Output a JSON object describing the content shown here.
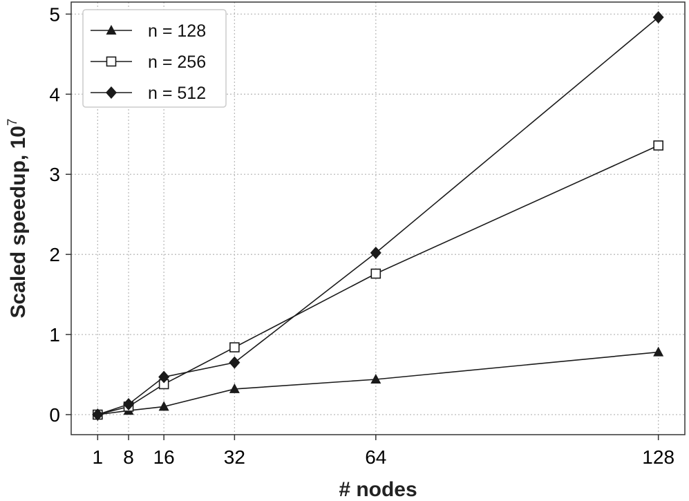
{
  "chart_data": {
    "type": "line",
    "xlabel": "# nodes",
    "ylabel": "Scaled speedup, 10",
    "ylabel_superscript": "7",
    "x_ticks": [
      1,
      8,
      16,
      32,
      64,
      128
    ],
    "x_tick_labels": [
      "1",
      "8",
      "16",
      "32",
      "64",
      "128"
    ],
    "y_ticks": [
      0,
      1,
      2,
      3,
      4,
      5
    ],
    "y_tick_labels": [
      "0",
      "1",
      "2",
      "3",
      "4",
      "5"
    ],
    "xlim": [
      -5,
      134
    ],
    "ylim": [
      -0.25,
      5.15
    ],
    "grid": true,
    "legend_position": "top-left",
    "x": [
      1,
      8,
      16,
      32,
      64,
      128
    ],
    "series": [
      {
        "name": "n = 128",
        "marker": "triangle",
        "values": [
          0.0,
          0.05,
          0.1,
          0.32,
          0.44,
          0.78
        ]
      },
      {
        "name": "n = 256",
        "marker": "square-open",
        "values": [
          0.0,
          0.1,
          0.38,
          0.84,
          1.76,
          3.36
        ]
      },
      {
        "name": "n = 512",
        "marker": "diamond",
        "values": [
          0.0,
          0.13,
          0.47,
          0.65,
          2.02,
          4.96
        ]
      }
    ],
    "colors": {
      "line": "#1a1a1a",
      "grid": "#bbbbbb",
      "axis": "#333333"
    }
  }
}
